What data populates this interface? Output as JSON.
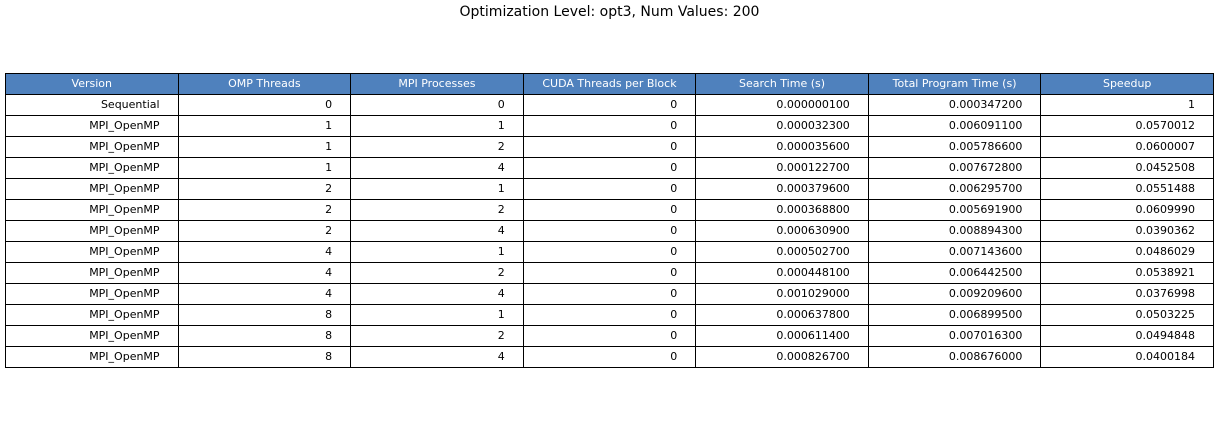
{
  "colors": {
    "header_bg": "#4f81bd",
    "header_text": "#ffffff",
    "cell_bg": "#ffffff",
    "border": "#000000"
  },
  "chart_data": {
    "type": "table",
    "title": "Optimization Level: opt3, Num Values: 200",
    "columns": [
      "Version",
      "OMP Threads",
      "MPI Processes",
      "CUDA Threads per Block",
      "Search Time (s)",
      "Total Program Time (s)",
      "Speedup"
    ],
    "rows": [
      [
        "Sequential",
        "0",
        "0",
        "0",
        "0.000000100",
        "0.000347200",
        "1"
      ],
      [
        "MPI_OpenMP",
        "1",
        "1",
        "0",
        "0.000032300",
        "0.006091100",
        "0.0570012"
      ],
      [
        "MPI_OpenMP",
        "1",
        "2",
        "0",
        "0.000035600",
        "0.005786600",
        "0.0600007"
      ],
      [
        "MPI_OpenMP",
        "1",
        "4",
        "0",
        "0.000122700",
        "0.007672800",
        "0.0452508"
      ],
      [
        "MPI_OpenMP",
        "2",
        "1",
        "0",
        "0.000379600",
        "0.006295700",
        "0.0551488"
      ],
      [
        "MPI_OpenMP",
        "2",
        "2",
        "0",
        "0.000368800",
        "0.005691900",
        "0.0609990"
      ],
      [
        "MPI_OpenMP",
        "2",
        "4",
        "0",
        "0.000630900",
        "0.008894300",
        "0.0390362"
      ],
      [
        "MPI_OpenMP",
        "4",
        "1",
        "0",
        "0.000502700",
        "0.007143600",
        "0.0486029"
      ],
      [
        "MPI_OpenMP",
        "4",
        "2",
        "0",
        "0.000448100",
        "0.006442500",
        "0.0538921"
      ],
      [
        "MPI_OpenMP",
        "4",
        "4",
        "0",
        "0.001029000",
        "0.009209600",
        "0.0376998"
      ],
      [
        "MPI_OpenMP",
        "8",
        "1",
        "0",
        "0.000637800",
        "0.006899500",
        "0.0503225"
      ],
      [
        "MPI_OpenMP",
        "8",
        "2",
        "0",
        "0.000611400",
        "0.007016300",
        "0.0494848"
      ],
      [
        "MPI_OpenMP",
        "8",
        "4",
        "0",
        "0.000826700",
        "0.008676000",
        "0.0400184"
      ]
    ]
  }
}
